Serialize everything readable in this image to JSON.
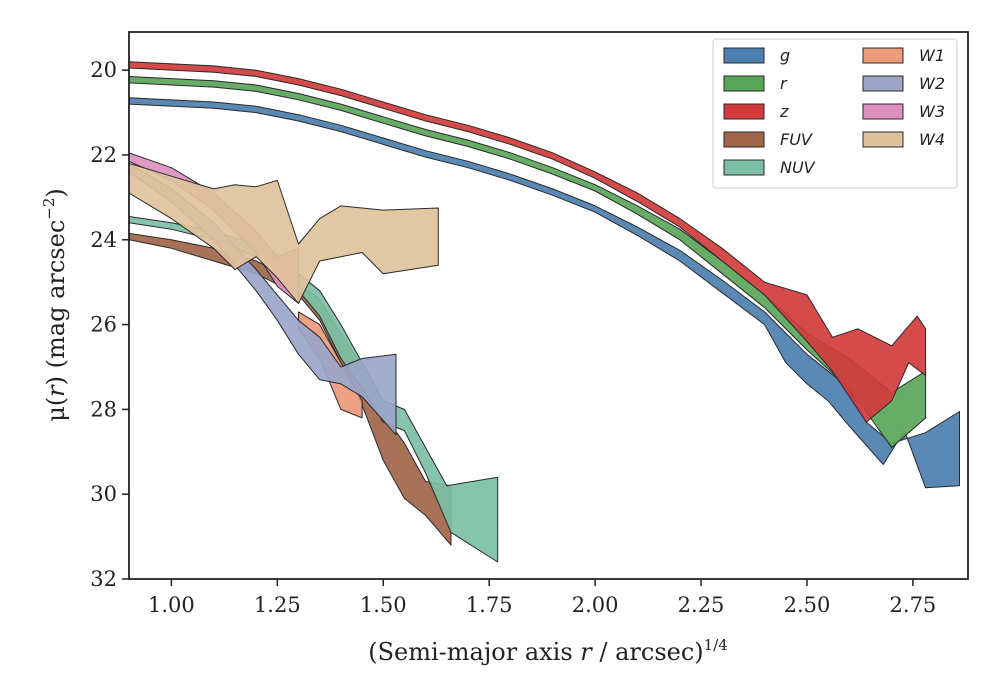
{
  "chart_data": {
    "type": "area",
    "title": "",
    "xlabel": "(Semi-major axis r / arcsec)^1/4",
    "xlabel_parts": {
      "main": "(Semi-major axis ",
      "var": "r",
      "mid": " / arcsec)",
      "sup": "1/4"
    },
    "ylabel": "μ(r) (mag arcsec^-2)",
    "ylabel_parts": {
      "sym": "μ(",
      "var": "r",
      "mid": ") (mag arcsec",
      "sup": "−2",
      "end": ")"
    },
    "xlim": [
      0.9,
      2.88
    ],
    "ylim": [
      32,
      19.1
    ],
    "y_inverted": true,
    "x_ticks": [
      1.0,
      1.25,
      1.5,
      1.75,
      2.0,
      2.25,
      2.5,
      2.75
    ],
    "x_tick_labels": [
      "1.00",
      "1.25",
      "1.50",
      "1.75",
      "2.00",
      "2.25",
      "2.50",
      "2.75"
    ],
    "y_ticks": [
      20,
      22,
      24,
      26,
      28,
      30,
      32
    ],
    "y_tick_labels": [
      "20",
      "22",
      "24",
      "26",
      "28",
      "30",
      "32"
    ],
    "grid": false,
    "legend_position": "top-right",
    "legend_columns": 2,
    "series": [
      {
        "name": "g",
        "color": "#4c7fb0",
        "upper": [
          [
            0.9,
            20.65
          ],
          [
            1.1,
            20.75
          ],
          [
            1.2,
            20.85
          ],
          [
            1.3,
            21.05
          ],
          [
            1.4,
            21.3
          ],
          [
            1.5,
            21.6
          ],
          [
            1.6,
            21.9
          ],
          [
            1.7,
            22.15
          ],
          [
            1.8,
            22.45
          ],
          [
            1.9,
            22.8
          ],
          [
            2.0,
            23.2
          ],
          [
            2.1,
            23.7
          ],
          [
            2.2,
            24.25
          ],
          [
            2.3,
            24.95
          ],
          [
            2.4,
            25.7
          ],
          [
            2.45,
            26.2
          ],
          [
            2.5,
            26.7
          ],
          [
            2.55,
            27.1
          ],
          [
            2.6,
            27.5
          ],
          [
            2.64,
            28.3
          ],
          [
            2.7,
            28.8
          ],
          [
            2.78,
            28.55
          ],
          [
            2.86,
            28.05
          ]
        ],
        "lower": [
          [
            0.9,
            20.8
          ],
          [
            1.1,
            20.9
          ],
          [
            1.2,
            21.0
          ],
          [
            1.3,
            21.2
          ],
          [
            1.4,
            21.45
          ],
          [
            1.5,
            21.75
          ],
          [
            1.6,
            22.05
          ],
          [
            1.7,
            22.3
          ],
          [
            1.8,
            22.6
          ],
          [
            1.9,
            22.95
          ],
          [
            2.0,
            23.35
          ],
          [
            2.1,
            23.9
          ],
          [
            2.2,
            24.5
          ],
          [
            2.3,
            25.25
          ],
          [
            2.4,
            26.0
          ],
          [
            2.45,
            26.9
          ],
          [
            2.5,
            27.4
          ],
          [
            2.55,
            27.8
          ],
          [
            2.6,
            28.4
          ],
          [
            2.68,
            29.3
          ],
          [
            2.73,
            28.5
          ],
          [
            2.78,
            29.85
          ],
          [
            2.86,
            29.8
          ]
        ]
      },
      {
        "name": "r",
        "color": "#5aa65a",
        "upper": [
          [
            0.9,
            20.15
          ],
          [
            1.1,
            20.25
          ],
          [
            1.2,
            20.35
          ],
          [
            1.3,
            20.55
          ],
          [
            1.4,
            20.8
          ],
          [
            1.5,
            21.1
          ],
          [
            1.6,
            21.4
          ],
          [
            1.7,
            21.65
          ],
          [
            1.8,
            21.95
          ],
          [
            1.9,
            22.3
          ],
          [
            2.0,
            22.7
          ],
          [
            2.1,
            23.2
          ],
          [
            2.2,
            23.75
          ],
          [
            2.3,
            24.5
          ],
          [
            2.4,
            25.3
          ],
          [
            2.5,
            26.2
          ],
          [
            2.6,
            26.8
          ],
          [
            2.7,
            27.6
          ],
          [
            2.78,
            27.1
          ]
        ],
        "lower": [
          [
            0.9,
            20.3
          ],
          [
            1.1,
            20.4
          ],
          [
            1.2,
            20.5
          ],
          [
            1.3,
            20.7
          ],
          [
            1.4,
            20.95
          ],
          [
            1.5,
            21.25
          ],
          [
            1.6,
            21.55
          ],
          [
            1.7,
            21.8
          ],
          [
            1.8,
            22.1
          ],
          [
            1.9,
            22.45
          ],
          [
            2.0,
            22.85
          ],
          [
            2.1,
            23.4
          ],
          [
            2.2,
            24.0
          ],
          [
            2.3,
            24.8
          ],
          [
            2.4,
            25.6
          ],
          [
            2.5,
            26.6
          ],
          [
            2.6,
            27.5
          ],
          [
            2.7,
            28.9
          ],
          [
            2.78,
            28.2
          ]
        ]
      },
      {
        "name": "z",
        "color": "#d13b3b",
        "upper": [
          [
            0.9,
            19.8
          ],
          [
            1.1,
            19.9
          ],
          [
            1.2,
            20.0
          ],
          [
            1.3,
            20.2
          ],
          [
            1.4,
            20.45
          ],
          [
            1.5,
            20.75
          ],
          [
            1.6,
            21.05
          ],
          [
            1.7,
            21.3
          ],
          [
            1.8,
            21.6
          ],
          [
            1.9,
            21.95
          ],
          [
            2.0,
            22.4
          ],
          [
            2.1,
            22.9
          ],
          [
            2.2,
            23.5
          ],
          [
            2.3,
            24.2
          ],
          [
            2.4,
            25.0
          ],
          [
            2.5,
            25.3
          ],
          [
            2.56,
            26.3
          ],
          [
            2.62,
            26.1
          ],
          [
            2.7,
            26.5
          ],
          [
            2.76,
            25.8
          ],
          [
            2.78,
            26.1
          ]
        ],
        "lower": [
          [
            0.9,
            19.95
          ],
          [
            1.1,
            20.05
          ],
          [
            1.2,
            20.15
          ],
          [
            1.3,
            20.35
          ],
          [
            1.4,
            20.6
          ],
          [
            1.5,
            20.9
          ],
          [
            1.6,
            21.2
          ],
          [
            1.7,
            21.45
          ],
          [
            1.8,
            21.75
          ],
          [
            1.9,
            22.1
          ],
          [
            2.0,
            22.55
          ],
          [
            2.1,
            23.1
          ],
          [
            2.2,
            23.7
          ],
          [
            2.3,
            24.5
          ],
          [
            2.4,
            25.3
          ],
          [
            2.5,
            26.4
          ],
          [
            2.56,
            27.1
          ],
          [
            2.64,
            28.3
          ],
          [
            2.7,
            27.8
          ],
          [
            2.74,
            26.9
          ],
          [
            2.78,
            27.2
          ]
        ]
      },
      {
        "name": "FUV",
        "color": "#a0664a",
        "upper": [
          [
            0.9,
            23.85
          ],
          [
            1.0,
            24.0
          ],
          [
            1.1,
            24.2
          ],
          [
            1.2,
            24.5
          ],
          [
            1.3,
            25.0
          ],
          [
            1.35,
            25.4
          ],
          [
            1.4,
            26.2
          ],
          [
            1.45,
            27.0
          ],
          [
            1.5,
            28.1
          ],
          [
            1.55,
            28.8
          ],
          [
            1.6,
            29.7
          ],
          [
            1.66,
            29.8
          ]
        ],
        "lower": [
          [
            0.9,
            24.0
          ],
          [
            1.0,
            24.2
          ],
          [
            1.1,
            24.5
          ],
          [
            1.2,
            24.8
          ],
          [
            1.3,
            25.3
          ],
          [
            1.35,
            25.9
          ],
          [
            1.4,
            26.9
          ],
          [
            1.45,
            27.9
          ],
          [
            1.5,
            29.2
          ],
          [
            1.55,
            30.1
          ],
          [
            1.6,
            30.5
          ],
          [
            1.66,
            31.2
          ]
        ]
      },
      {
        "name": "NUV",
        "color": "#7cbfa4",
        "upper": [
          [
            0.9,
            23.45
          ],
          [
            1.0,
            23.6
          ],
          [
            1.1,
            23.8
          ],
          [
            1.2,
            24.1
          ],
          [
            1.3,
            24.8
          ],
          [
            1.35,
            25.2
          ],
          [
            1.4,
            26.0
          ],
          [
            1.45,
            26.9
          ],
          [
            1.5,
            27.8
          ],
          [
            1.55,
            28.0
          ],
          [
            1.6,
            28.9
          ],
          [
            1.65,
            29.8
          ],
          [
            1.77,
            29.6
          ]
        ],
        "lower": [
          [
            0.9,
            23.6
          ],
          [
            1.0,
            23.75
          ],
          [
            1.1,
            24.0
          ],
          [
            1.2,
            24.4
          ],
          [
            1.3,
            25.2
          ],
          [
            1.35,
            25.8
          ],
          [
            1.4,
            26.8
          ],
          [
            1.45,
            27.5
          ],
          [
            1.5,
            28.3
          ],
          [
            1.55,
            28.5
          ],
          [
            1.6,
            29.5
          ],
          [
            1.66,
            30.9
          ],
          [
            1.77,
            31.6
          ]
        ]
      },
      {
        "name": "W1",
        "color": "#ec9a7c",
        "upper": [
          [
            1.3,
            25.7
          ],
          [
            1.35,
            26.0
          ],
          [
            1.4,
            26.9
          ],
          [
            1.45,
            27.8
          ]
        ],
        "lower": [
          [
            1.3,
            26.1
          ],
          [
            1.35,
            26.8
          ],
          [
            1.4,
            28.0
          ],
          [
            1.45,
            28.2
          ]
        ]
      },
      {
        "name": "W2",
        "color": "#9aa5c8",
        "upper": [
          [
            0.9,
            22.2
          ],
          [
            1.0,
            22.8
          ],
          [
            1.1,
            23.6
          ],
          [
            1.2,
            24.7
          ],
          [
            1.25,
            25.3
          ],
          [
            1.3,
            25.9
          ],
          [
            1.35,
            26.3
          ],
          [
            1.4,
            27.0
          ],
          [
            1.45,
            26.8
          ],
          [
            1.53,
            26.7
          ]
        ],
        "lower": [
          [
            0.9,
            22.4
          ],
          [
            1.0,
            23.1
          ],
          [
            1.1,
            24.0
          ],
          [
            1.2,
            25.2
          ],
          [
            1.25,
            25.9
          ],
          [
            1.3,
            26.7
          ],
          [
            1.35,
            27.3
          ],
          [
            1.4,
            27.4
          ],
          [
            1.45,
            27.7
          ],
          [
            1.53,
            28.6
          ]
        ]
      },
      {
        "name": "W3",
        "color": "#dc90bf",
        "upper": [
          [
            0.9,
            21.95
          ],
          [
            1.0,
            22.3
          ],
          [
            1.1,
            22.9
          ],
          [
            1.2,
            23.8
          ],
          [
            1.25,
            24.4
          ],
          [
            1.3,
            24.2
          ]
        ],
        "lower": [
          [
            0.9,
            22.15
          ],
          [
            1.0,
            22.6
          ],
          [
            1.1,
            23.3
          ],
          [
            1.2,
            24.3
          ],
          [
            1.25,
            25.1
          ],
          [
            1.3,
            25.5
          ]
        ]
      },
      {
        "name": "W4",
        "color": "#dfc29c",
        "upper": [
          [
            0.9,
            22.2
          ],
          [
            1.0,
            22.5
          ],
          [
            1.1,
            22.8
          ],
          [
            1.15,
            22.7
          ],
          [
            1.2,
            22.75
          ],
          [
            1.25,
            22.6
          ],
          [
            1.3,
            24.1
          ],
          [
            1.35,
            23.5
          ],
          [
            1.4,
            23.2
          ],
          [
            1.5,
            23.3
          ],
          [
            1.63,
            23.25
          ]
        ],
        "lower": [
          [
            0.9,
            22.9
          ],
          [
            1.0,
            23.5
          ],
          [
            1.1,
            24.2
          ],
          [
            1.15,
            24.7
          ],
          [
            1.2,
            24.4
          ],
          [
            1.25,
            24.9
          ],
          [
            1.3,
            25.5
          ],
          [
            1.35,
            24.5
          ],
          [
            1.45,
            24.3
          ],
          [
            1.5,
            24.8
          ],
          [
            1.63,
            24.6
          ]
        ]
      }
    ]
  }
}
